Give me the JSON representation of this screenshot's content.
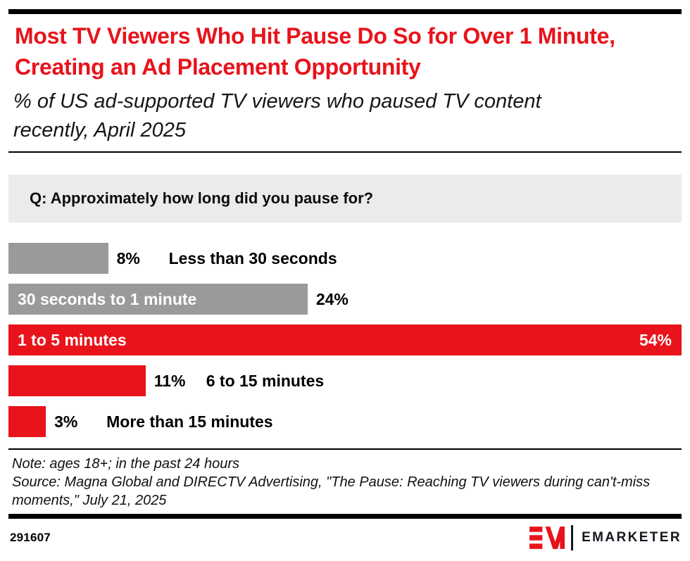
{
  "header": {
    "title": "Most TV Viewers Who Hit Pause Do So for Over 1 Minute, Creating an Ad Placement Opportunity",
    "subtitle": "% of US ad-supported TV viewers who paused TV content recently, April 2025"
  },
  "question": {
    "text": "Q: Approximately how long did you pause for?"
  },
  "chart_data": {
    "type": "bar",
    "orientation": "horizontal",
    "title": "Q: Approximately how long did you pause for?",
    "unit": "%",
    "axis_max": 54,
    "grid": false,
    "legend": false,
    "categories": [
      "Less than 30 seconds",
      "30 seconds to 1 minute",
      "1 to 5 minutes",
      "6 to 15 minutes",
      "More than 15 minutes"
    ],
    "values": [
      8,
      24,
      54,
      11,
      3
    ],
    "bars": [
      {
        "label": "Less than 30 seconds",
        "value": 8,
        "value_label": "8%",
        "color": "#9A9A9A",
        "label_placement": "outside",
        "value_placement": "outside"
      },
      {
        "label": "30 seconds to 1 minute",
        "value": 24,
        "value_label": "24%",
        "color": "#9A9A9A",
        "label_placement": "inside",
        "value_placement": "outside"
      },
      {
        "label": "1 to 5 minutes",
        "value": 54,
        "value_label": "54%",
        "color": "#E8131B",
        "label_placement": "inside",
        "value_placement": "inside"
      },
      {
        "label": "6 to 15 minutes",
        "value": 11,
        "value_label": "11%",
        "color": "#E8131B",
        "label_placement": "outside",
        "value_placement": "outside"
      },
      {
        "label": "More than 15 minutes",
        "value": 3,
        "value_label": "3%",
        "color": "#E8131B",
        "label_placement": "outside",
        "value_placement": "outside"
      }
    ]
  },
  "footer": {
    "note": "Note: ages 18+; in the past 24 hours",
    "source": "Source: Magna Global and DIRECTV Advertising, \"The Pause: Reaching TV viewers during can't-miss moments,\" July 21, 2025",
    "chart_id": "291607",
    "brand_wordmark": "EMARKETER"
  },
  "colors": {
    "accent_red": "#E8131B",
    "bar_gray": "#9A9A9A",
    "question_bg": "#EBEBEB",
    "rule_black": "#000000",
    "brand_dark": "#16161F"
  }
}
